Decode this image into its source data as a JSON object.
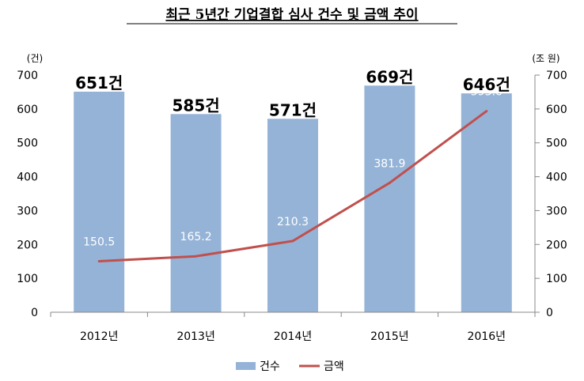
{
  "chart_data": {
    "type": "bar",
    "title": "최근 5년간 기업결합 심사 건수 및 금액 추이",
    "categories": [
      "2012년",
      "2013년",
      "2014년",
      "2015년",
      "2016년"
    ],
    "series": [
      {
        "name": "건수",
        "type": "bar",
        "axis": "left",
        "values": [
          651,
          585,
          571,
          669,
          646
        ],
        "labels": [
          "651건",
          "585건",
          "571건",
          "669건",
          "646건"
        ],
        "color": "#95B3D7"
      },
      {
        "name": "금액",
        "type": "line",
        "axis": "right",
        "values": [
          150.5,
          165.2,
          210.3,
          381.9,
          593.6
        ],
        "labels": [
          "150.5",
          "165.2",
          "210.3",
          "381.9",
          "593.6"
        ],
        "color": "#C0504D"
      }
    ],
    "y_left": {
      "unit": "(건)",
      "ylim": [
        0,
        700
      ],
      "ticks": [
        "0",
        "100",
        "200",
        "300",
        "400",
        "500",
        "600",
        "700"
      ]
    },
    "y_right": {
      "unit": "(조 원)",
      "ylim": [
        0,
        700
      ],
      "ticks": [
        "0",
        "100",
        "200",
        "300",
        "400",
        "500",
        "600",
        "700"
      ]
    },
    "grid": false,
    "legend_position": "bottom"
  }
}
